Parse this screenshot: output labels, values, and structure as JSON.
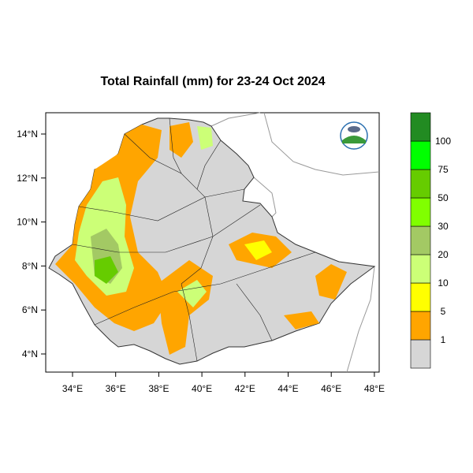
{
  "title": "Total Rainfall (mm) for 23-24 Oct 2024",
  "lon_ticks": [
    "34°E",
    "36°E",
    "38°E",
    "40°E",
    "42°E",
    "44°E",
    "46°E",
    "48°E"
  ],
  "lat_ticks": [
    "14°N",
    "12°N",
    "10°N",
    "8°N",
    "6°N",
    "4°N"
  ],
  "colorbar": {
    "levels": [
      1,
      5,
      10,
      20,
      30,
      50,
      75,
      100
    ],
    "colors": [
      "#d6d6d6",
      "#ffa500",
      "#ffff00",
      "#ccff77",
      "#a3c964",
      "#80ff00",
      "#66cc00",
      "#00ff00",
      "#228b22"
    ]
  }
}
